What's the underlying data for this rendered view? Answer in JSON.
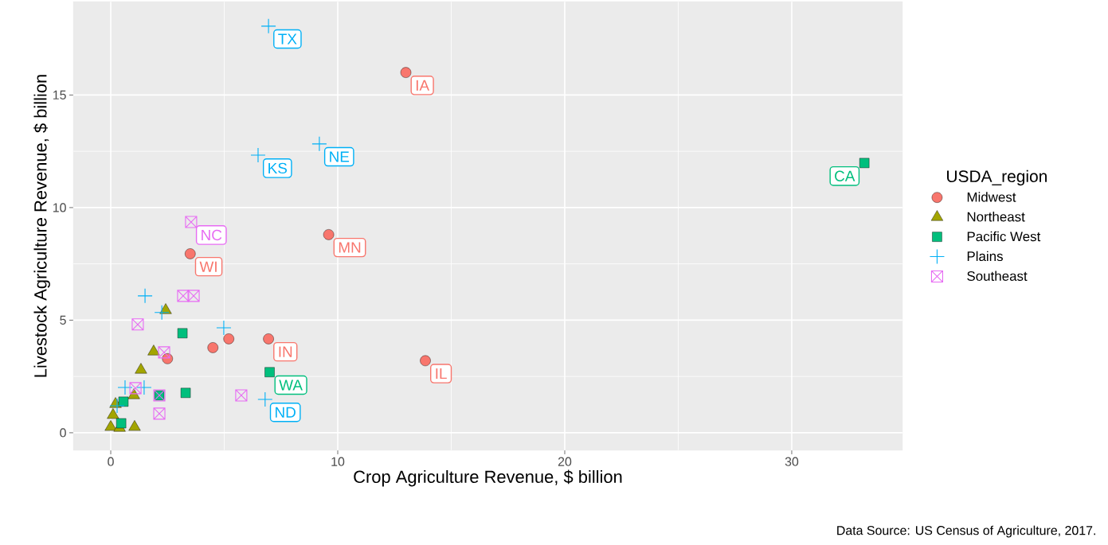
{
  "chart_data": {
    "type": "scatter",
    "xlabel": "Crop Agriculture Revenue, $ billion",
    "ylabel": "Livestock Agriculture Revenue, $ billion",
    "legend_title": "USDA_region",
    "legend": "right",
    "grid": true,
    "xlim": [
      -1.65,
      34.88
    ],
    "ylim": [
      -0.78,
      19.15
    ],
    "xticks": [
      0,
      10,
      20,
      30
    ],
    "yticks": [
      0,
      5,
      10,
      15
    ],
    "series": [
      {
        "name": "Midwest",
        "color": "#F8766D",
        "marker": "circle",
        "x": [
          13.0,
          13.86,
          9.6,
          3.5,
          6.95,
          5.2,
          4.5,
          2.5
        ],
        "values": [
          16.0,
          3.2,
          8.8,
          7.95,
          4.17,
          4.17,
          3.78,
          3.29
        ]
      },
      {
        "name": "Northeast",
        "color": "#A3A500",
        "marker": "triangle",
        "x": [
          2.42,
          1.89,
          1.33,
          1.02,
          0.21,
          0.1,
          0.0,
          0.39,
          1.05
        ],
        "values": [
          5.44,
          3.6,
          2.79,
          1.66,
          1.27,
          0.78,
          0.25,
          0.21,
          0.25
        ]
      },
      {
        "name": "Pacific West",
        "color": "#00BF7D",
        "marker": "square",
        "x": [
          33.2,
          7.0,
          3.16,
          3.3,
          2.14,
          0.56,
          0.46
        ],
        "values": [
          11.98,
          2.69,
          4.42,
          1.77,
          1.66,
          1.38,
          0.42
        ]
      },
      {
        "name": "Plains",
        "color": "#00B0F6",
        "marker": "cross",
        "x": [
          6.95,
          9.19,
          6.49,
          6.8,
          1.51,
          2.25,
          4.98,
          1.47,
          0.63,
          0.28
        ],
        "values": [
          18.06,
          12.83,
          12.33,
          1.48,
          6.08,
          5.34,
          4.66,
          2.01,
          2.01,
          1.2
        ]
      },
      {
        "name": "Southeast",
        "color": "#E76BF3",
        "x": [
          3.54,
          3.19,
          3.65,
          1.19,
          2.35,
          1.09,
          2.14,
          2.14,
          5.75
        ],
        "values": [
          9.36,
          6.08,
          6.08,
          4.81,
          3.57,
          1.98,
          1.66,
          0.85,
          1.66
        ]
      }
    ],
    "annotations": [
      {
        "text": "IA",
        "x": 13.0,
        "y": 16.0
      },
      {
        "text": "IL",
        "x": 13.86,
        "y": 3.2
      },
      {
        "text": "MN",
        "x": 9.6,
        "y": 8.8
      },
      {
        "text": "WI",
        "x": 3.5,
        "y": 7.95
      },
      {
        "text": "IN",
        "x": 6.95,
        "y": 4.17
      },
      {
        "text": "CA",
        "x": 33.2,
        "y": 11.98
      },
      {
        "text": "WA",
        "x": 7.0,
        "y": 2.69
      },
      {
        "text": "TX",
        "x": 6.95,
        "y": 18.06
      },
      {
        "text": "NE",
        "x": 9.19,
        "y": 12.83
      },
      {
        "text": "KS",
        "x": 6.49,
        "y": 12.33
      },
      {
        "text": "ND",
        "x": 6.8,
        "y": 1.48
      },
      {
        "text": "NC",
        "x": 3.54,
        "y": 9.36
      },
      "Data Source: US Census of Agriculture, 2017."
    ]
  }
}
